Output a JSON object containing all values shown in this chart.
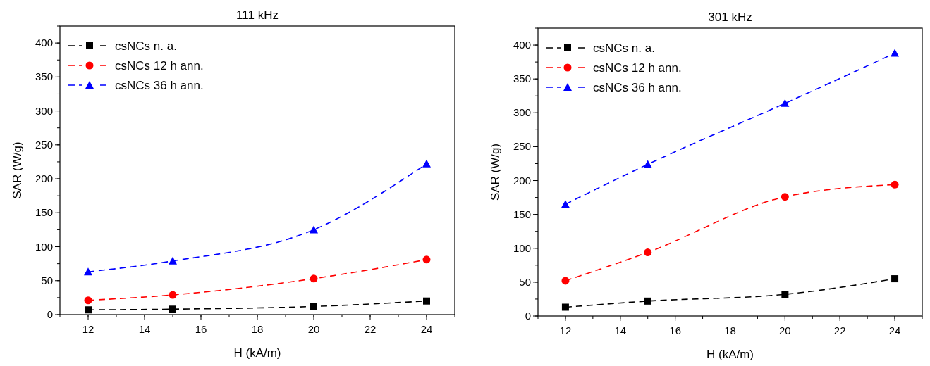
{
  "chart_data": [
    {
      "type": "line",
      "title": "111 kHz",
      "xlabel": "H (kA/m)",
      "ylabel": "SAR (W/g)",
      "x": [
        12,
        15,
        20,
        24
      ],
      "xlim": [
        11,
        25
      ],
      "xticks": [
        12,
        14,
        16,
        18,
        20,
        22,
        24
      ],
      "ylim": [
        0,
        425
      ],
      "yticks": [
        0,
        50,
        100,
        150,
        200,
        250,
        300,
        350,
        400
      ],
      "grid": false,
      "legend": "top left",
      "line_style": "dashed",
      "series": [
        {
          "name": "csNCs n. a.",
          "color": "#000000",
          "marker": "square",
          "values": [
            7,
            8,
            12,
            20
          ]
        },
        {
          "name": "csNCs 12 h ann.",
          "color": "#ff0000",
          "marker": "circle",
          "values": [
            21,
            29,
            53,
            81
          ]
        },
        {
          "name": "csNCs 36 h ann.",
          "color": "#0000ff",
          "marker": "triangle",
          "values": [
            63,
            79,
            125,
            222
          ]
        }
      ]
    },
    {
      "type": "line",
      "title": "301 kHz",
      "xlabel": "H (kA/m)",
      "ylabel": "SAR (W/g)",
      "x": [
        12,
        15,
        20,
        24
      ],
      "xlim": [
        11,
        25
      ],
      "xticks": [
        12,
        14,
        16,
        18,
        20,
        22,
        24
      ],
      "ylim": [
        0,
        425
      ],
      "yticks": [
        0,
        50,
        100,
        150,
        200,
        250,
        300,
        350,
        400
      ],
      "grid": false,
      "legend": "top left",
      "line_style": "dashed",
      "series": [
        {
          "name": "csNCs n. a.",
          "color": "#000000",
          "marker": "square",
          "values": [
            13,
            22,
            32,
            55
          ]
        },
        {
          "name": "csNCs 12 h ann.",
          "color": "#ff0000",
          "marker": "circle",
          "values": [
            52,
            94,
            176,
            194
          ]
        },
        {
          "name": "csNCs 36 h ann.",
          "color": "#0000ff",
          "marker": "triangle",
          "values": [
            165,
            224,
            314,
            388
          ]
        }
      ]
    }
  ]
}
